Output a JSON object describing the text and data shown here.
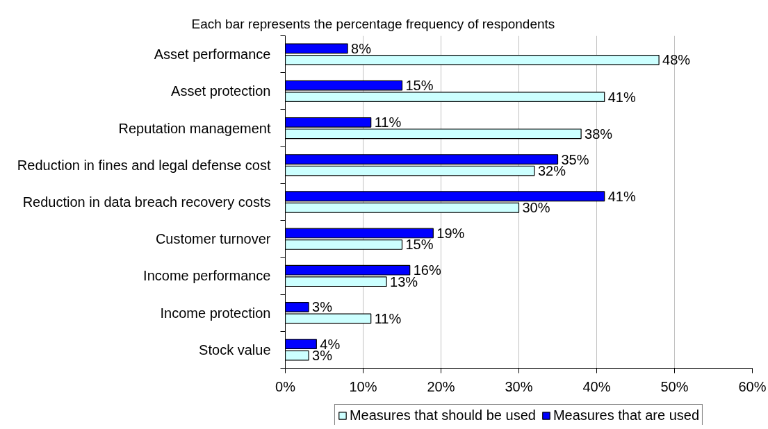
{
  "chart_data": {
    "type": "bar",
    "orientation": "horizontal",
    "title": "Each bar represents the percentage frequency of respondents",
    "categories": [
      "Asset performance",
      "Asset protection",
      "Reputation management",
      "Reduction in fines and legal defense cost",
      "Reduction in data breach recovery costs",
      "Customer turnover",
      "Income performance",
      "Income protection",
      "Stock value"
    ],
    "series": [
      {
        "name": "Measures that should be used",
        "color": "#ccffff",
        "values": [
          48,
          41,
          38,
          32,
          30,
          15,
          13,
          11,
          3
        ],
        "value_labels": [
          "48%",
          "41%",
          "38%",
          "32%",
          "30%",
          "15%",
          "13%",
          "11%",
          "3%"
        ]
      },
      {
        "name": "Measures that are used",
        "color": "#0000ff",
        "values": [
          8,
          15,
          11,
          35,
          41,
          19,
          16,
          3,
          4
        ],
        "value_labels": [
          "8%",
          "15%",
          "11%",
          "35%",
          "41%",
          "19%",
          "16%",
          "3%",
          "4%"
        ]
      }
    ],
    "xlim": [
      0,
      60
    ],
    "xticks": [
      {
        "value": 0,
        "label": "0%"
      },
      {
        "value": 10,
        "label": "10%"
      },
      {
        "value": 20,
        "label": "20%"
      },
      {
        "value": 30,
        "label": "30%"
      },
      {
        "value": 40,
        "label": "40%"
      },
      {
        "value": 50,
        "label": "50%"
      },
      {
        "value": 60,
        "label": "60%"
      }
    ],
    "grid": "x",
    "legend": "bottom"
  }
}
